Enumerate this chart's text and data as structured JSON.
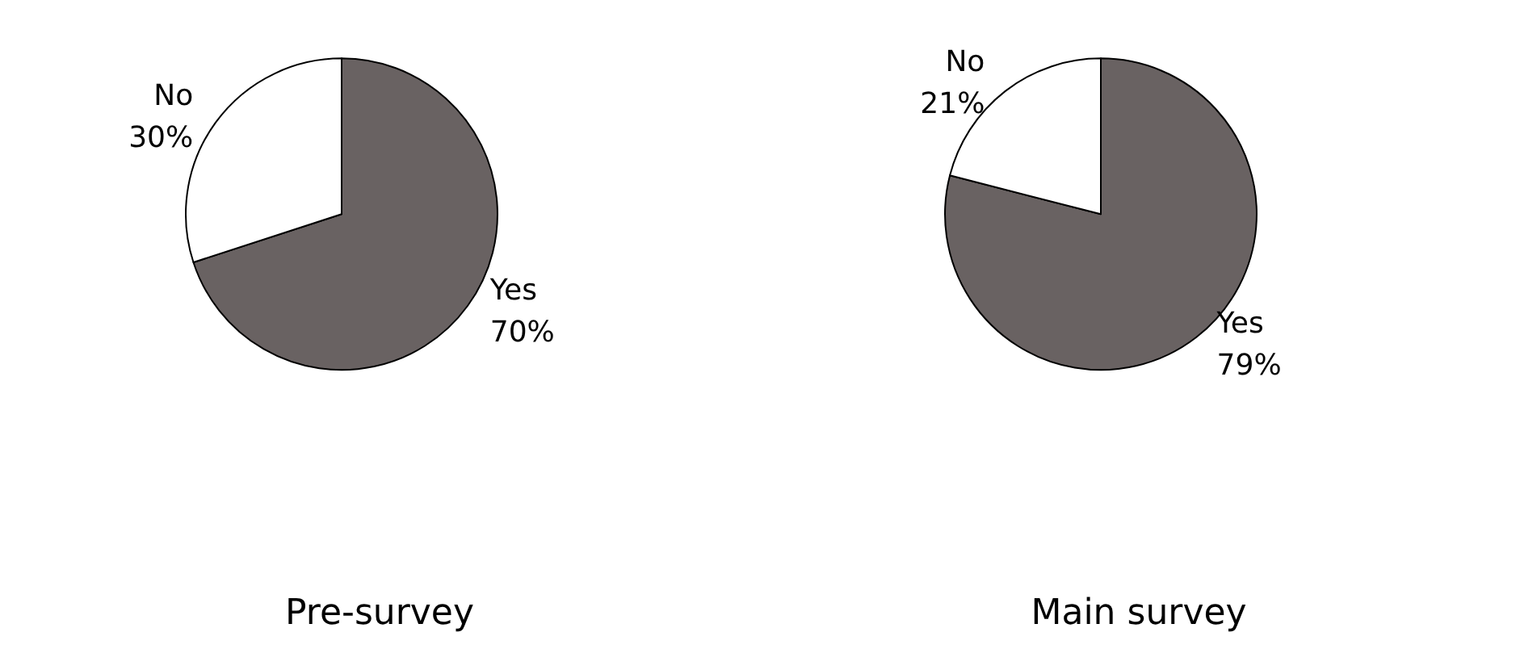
{
  "chart_data": [
    {
      "type": "pie",
      "title": "Pre-survey",
      "categories": [
        "Yes",
        "No"
      ],
      "values": [
        70,
        30
      ],
      "colors": [
        "#696262",
        "#ffffff"
      ],
      "value_labels": [
        "70%",
        "30%"
      ],
      "legend": false
    },
    {
      "type": "pie",
      "title": "Main survey",
      "categories": [
        "Yes",
        "No"
      ],
      "values": [
        79,
        21
      ],
      "colors": [
        "#696262",
        "#ffffff"
      ],
      "value_labels": [
        "79%",
        "21%"
      ],
      "legend": false
    }
  ]
}
